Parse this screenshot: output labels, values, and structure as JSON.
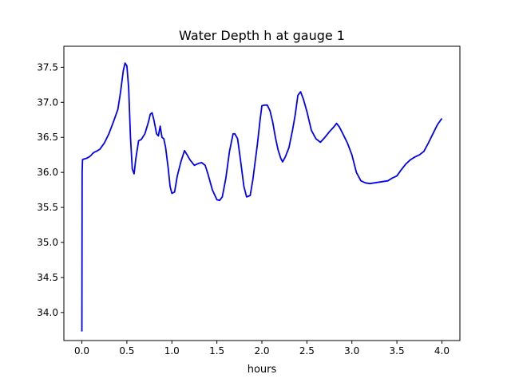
{
  "chart_data": {
    "type": "line",
    "title": "Water Depth h at gauge 1",
    "xlabel": "hours",
    "ylabel": "",
    "xlim": [
      -0.2,
      4.2
    ],
    "ylim": [
      33.6,
      37.8
    ],
    "grid": false,
    "line_color": "#0000ff",
    "x_ticks": [
      {
        "value": 0.0,
        "label": "0.0"
      },
      {
        "value": 0.5,
        "label": "0.5"
      },
      {
        "value": 1.0,
        "label": "1.0"
      },
      {
        "value": 1.5,
        "label": "1.5"
      },
      {
        "value": 2.0,
        "label": "2.0"
      },
      {
        "value": 2.5,
        "label": "2.5"
      },
      {
        "value": 3.0,
        "label": "3.0"
      },
      {
        "value": 3.5,
        "label": "3.5"
      },
      {
        "value": 4.0,
        "label": "4.0"
      }
    ],
    "y_ticks": [
      {
        "value": 34.0,
        "label": "34.0"
      },
      {
        "value": 34.5,
        "label": "34.5"
      },
      {
        "value": 35.0,
        "label": "35.0"
      },
      {
        "value": 35.5,
        "label": "35.5"
      },
      {
        "value": 36.0,
        "label": "36.0"
      },
      {
        "value": 36.5,
        "label": "36.5"
      },
      {
        "value": 37.0,
        "label": "37.0"
      },
      {
        "value": 37.5,
        "label": "37.5"
      }
    ],
    "series": [
      {
        "x": [
          0.0,
          0.003,
          0.007,
          0.02,
          0.05,
          0.08,
          0.1,
          0.12,
          0.14,
          0.16,
          0.2,
          0.25,
          0.3,
          0.35,
          0.4,
          0.43,
          0.46,
          0.48,
          0.5,
          0.52,
          0.54,
          0.56,
          0.58,
          0.6,
          0.63,
          0.66,
          0.7,
          0.74,
          0.76,
          0.78,
          0.8,
          0.83,
          0.85,
          0.87,
          0.89,
          0.91,
          0.93,
          0.96,
          0.98,
          1.0,
          1.03,
          1.06,
          1.1,
          1.14,
          1.17,
          1.2,
          1.25,
          1.3,
          1.33,
          1.37,
          1.4,
          1.45,
          1.5,
          1.53,
          1.56,
          1.6,
          1.64,
          1.68,
          1.7,
          1.73,
          1.76,
          1.8,
          1.83,
          1.87,
          1.9,
          1.95,
          1.98,
          2.0,
          2.03,
          2.06,
          2.09,
          2.12,
          2.15,
          2.18,
          2.21,
          2.23,
          2.26,
          2.3,
          2.34,
          2.37,
          2.4,
          2.43,
          2.46,
          2.5,
          2.55,
          2.6,
          2.65,
          2.7,
          2.75,
          2.8,
          2.83,
          2.86,
          2.9,
          2.95,
          3.0,
          3.05,
          3.1,
          3.15,
          3.2,
          3.25,
          3.3,
          3.35,
          3.4,
          3.45,
          3.5,
          3.55,
          3.6,
          3.65,
          3.7,
          3.75,
          3.8,
          3.85,
          3.9,
          3.95,
          4.0
        ],
        "y": [
          33.73,
          36.0,
          36.18,
          36.19,
          36.2,
          36.22,
          36.24,
          36.27,
          36.29,
          36.3,
          36.33,
          36.42,
          36.55,
          36.72,
          36.9,
          37.15,
          37.45,
          37.56,
          37.52,
          37.2,
          36.5,
          36.05,
          35.98,
          36.2,
          36.45,
          36.47,
          36.55,
          36.72,
          36.83,
          36.85,
          36.75,
          36.55,
          36.52,
          36.66,
          36.5,
          36.48,
          36.36,
          36.05,
          35.8,
          35.7,
          35.72,
          35.95,
          36.15,
          36.31,
          36.25,
          36.18,
          36.1,
          36.13,
          36.14,
          36.1,
          35.98,
          35.75,
          35.61,
          35.6,
          35.65,
          35.92,
          36.3,
          36.55,
          36.55,
          36.48,
          36.2,
          35.8,
          35.65,
          35.67,
          35.9,
          36.4,
          36.75,
          36.95,
          36.96,
          36.96,
          36.88,
          36.72,
          36.5,
          36.32,
          36.2,
          36.15,
          36.22,
          36.35,
          36.6,
          36.82,
          37.1,
          37.15,
          37.05,
          36.87,
          36.6,
          36.48,
          36.43,
          36.5,
          36.58,
          36.65,
          36.7,
          36.65,
          36.55,
          36.42,
          36.25,
          36.0,
          35.88,
          35.85,
          35.84,
          35.85,
          35.86,
          35.87,
          35.88,
          35.92,
          35.95,
          36.04,
          36.12,
          36.18,
          36.22,
          36.25,
          36.3,
          36.42,
          36.55,
          36.68,
          36.77
        ]
      }
    ]
  }
}
